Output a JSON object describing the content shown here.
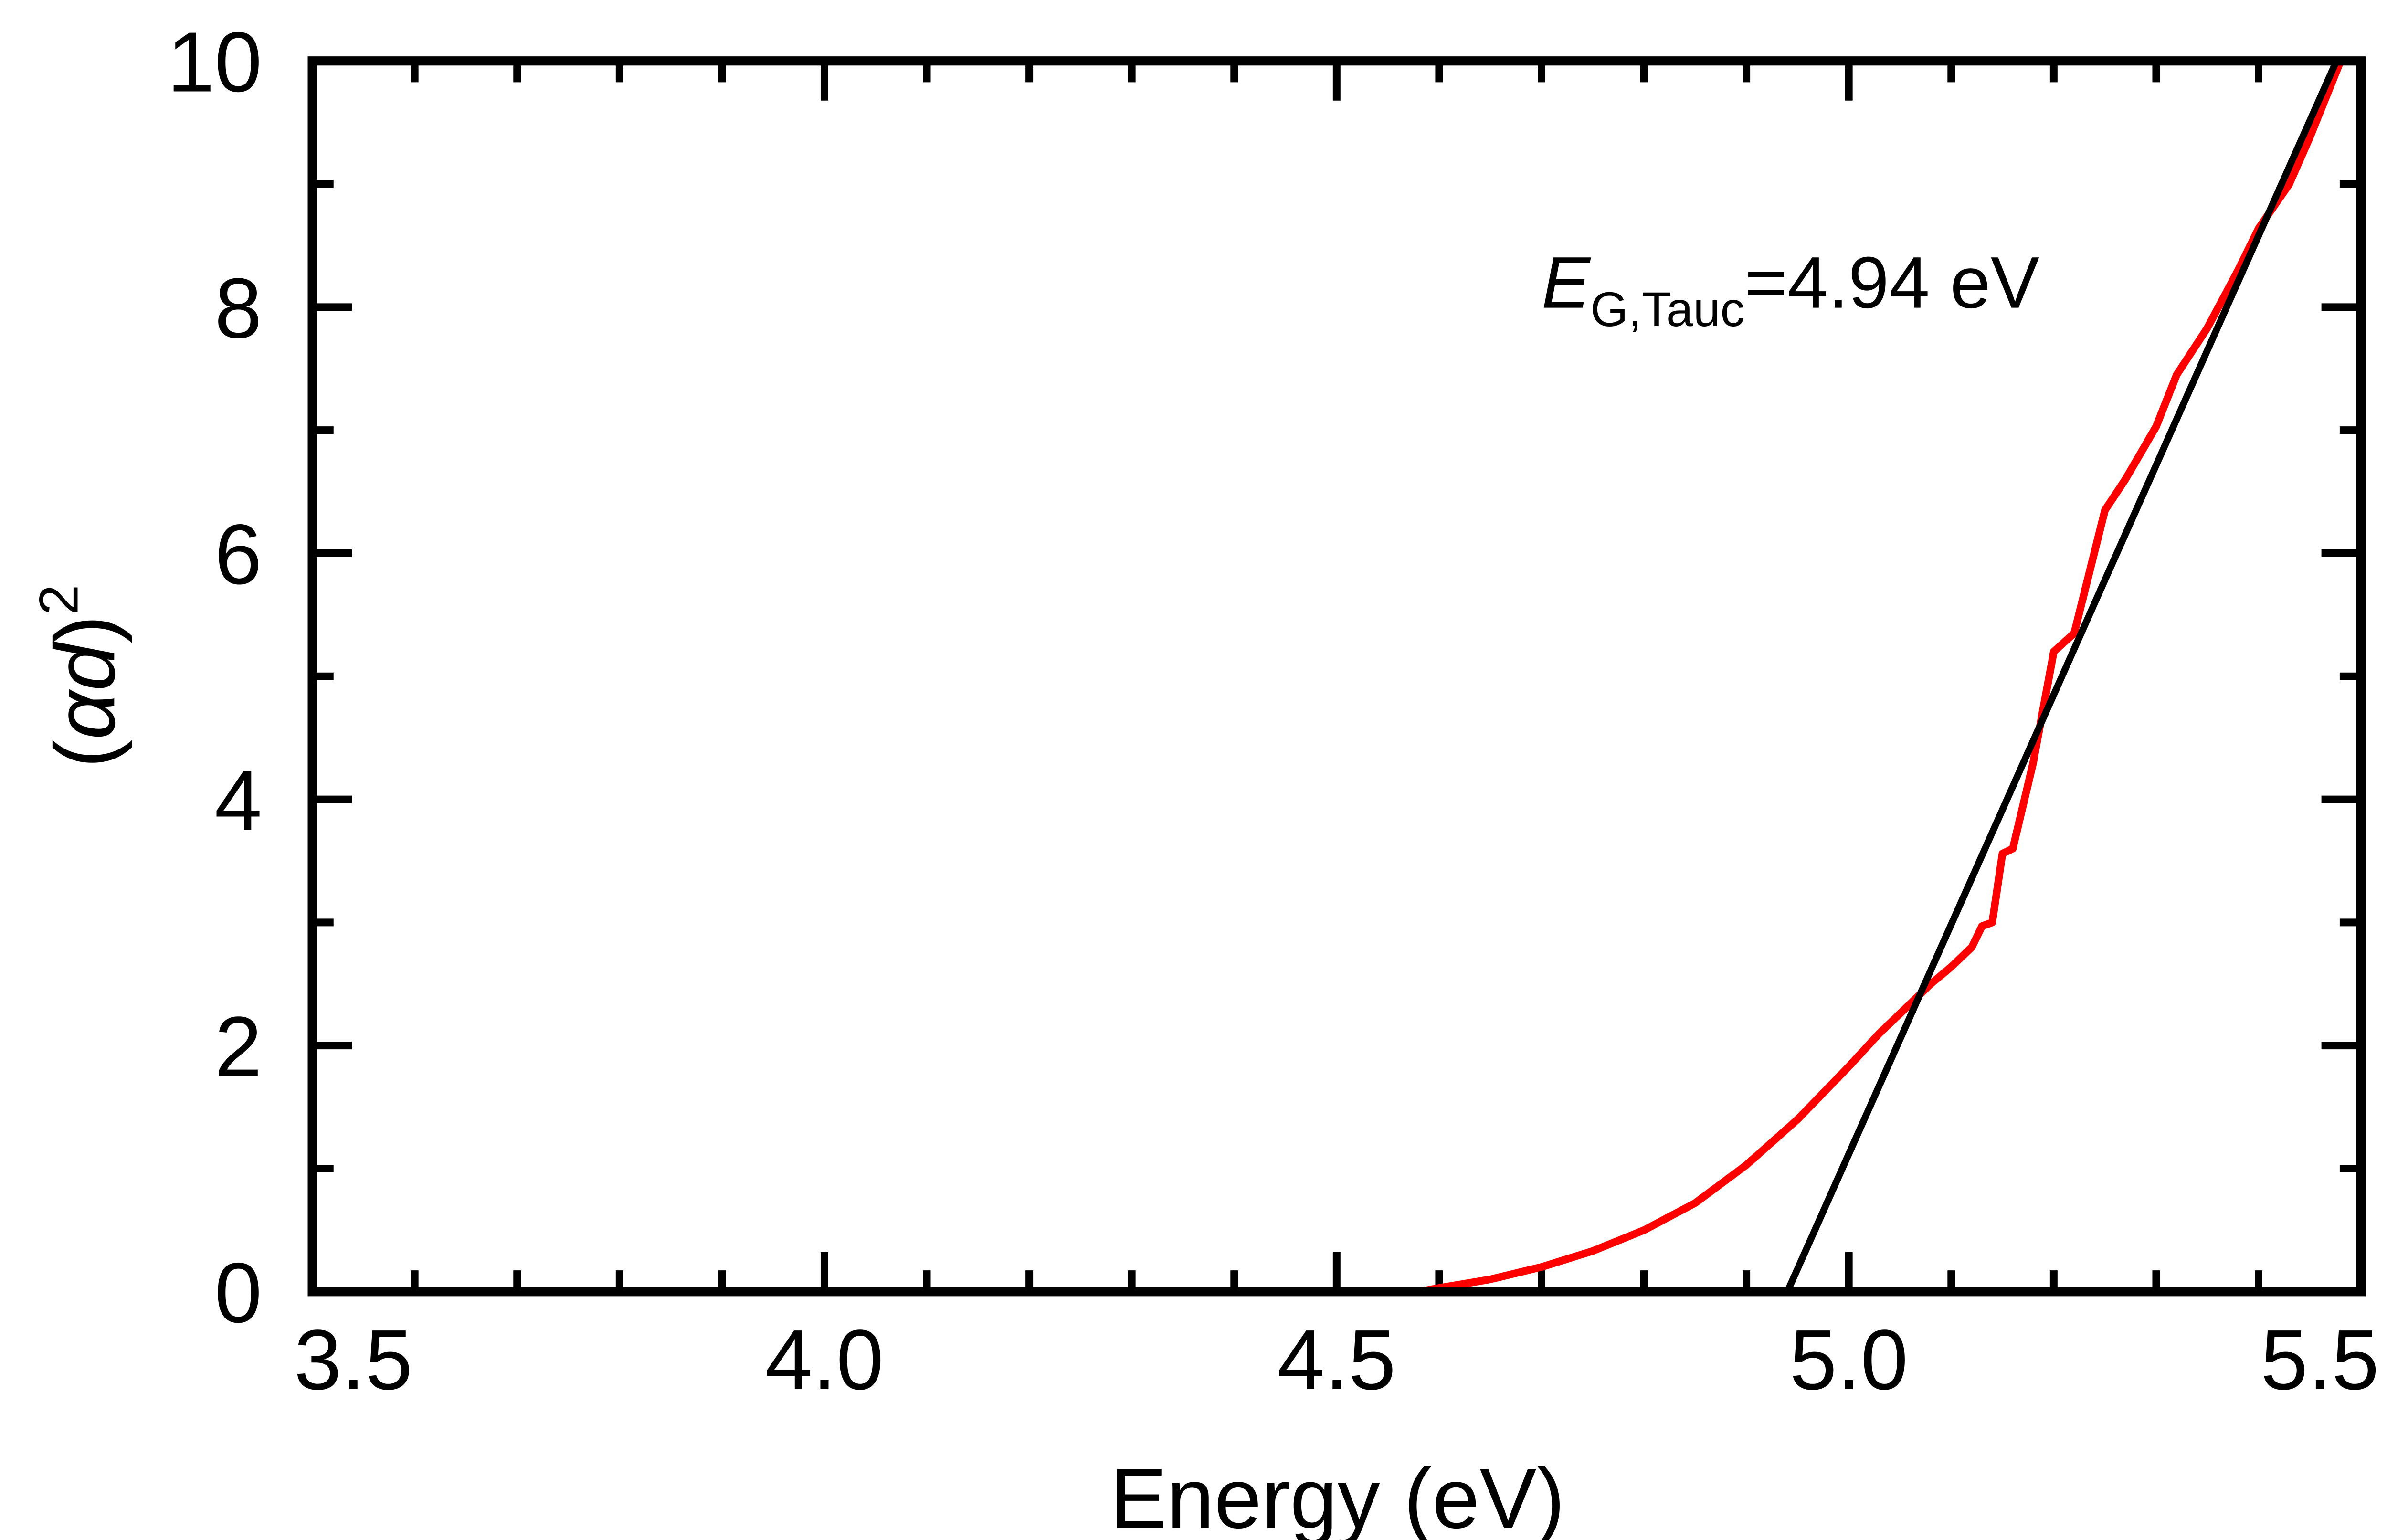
{
  "chart_data": {
    "type": "line",
    "title": "",
    "xlabel": "Energy (eV)",
    "ylabel": "(αd)²",
    "ylabel_parts": {
      "open": "(",
      "alpha": "α",
      "d": "d",
      "close": ")",
      "sup": "2"
    },
    "xlim": [
      3.5,
      5.5
    ],
    "ylim": [
      0,
      10
    ],
    "xticks": [
      "3.5",
      "4.0",
      "4.5",
      "5.0",
      "5.5"
    ],
    "xtick_values": [
      3.5,
      4.0,
      4.5,
      5.0,
      5.5
    ],
    "yticks": [
      "0",
      "2",
      "4",
      "6",
      "8",
      "10"
    ],
    "ytick_values": [
      0,
      2,
      4,
      6,
      8,
      10
    ],
    "x_minor_step": 0.1,
    "y_minor_step": 1,
    "grid": false,
    "annotation": {
      "E": "E",
      "sub": "G,Tauc",
      "rest": "=4.94 eV"
    },
    "series": [
      {
        "color": "#ff0000",
        "x": [
          3.5,
          4.0,
          4.5,
          4.58,
          4.6,
          4.65,
          4.7,
          4.75,
          4.8,
          4.85,
          4.9,
          4.95,
          5.0,
          5.03,
          5.05,
          5.08,
          5.1,
          5.12,
          5.13,
          5.14,
          5.15,
          5.16,
          5.18,
          5.2,
          5.22,
          5.25,
          5.27,
          5.3,
          5.32,
          5.35,
          5.38,
          5.4,
          5.43,
          5.45,
          5.48
        ],
        "y": [
          0,
          0,
          0,
          0,
          0.03,
          0.1,
          0.2,
          0.33,
          0.5,
          0.72,
          1.03,
          1.4,
          1.83,
          2.1,
          2.26,
          2.5,
          2.64,
          2.8,
          2.97,
          3.0,
          3.56,
          3.6,
          4.3,
          5.2,
          5.35,
          6.35,
          6.6,
          7.03,
          7.45,
          7.83,
          8.3,
          8.64,
          9.0,
          9.38,
          10.0
        ]
      },
      {
        "color": "#000000",
        "x": [
          4.94,
          5.476
        ],
        "y": [
          0,
          10
        ]
      }
    ]
  }
}
